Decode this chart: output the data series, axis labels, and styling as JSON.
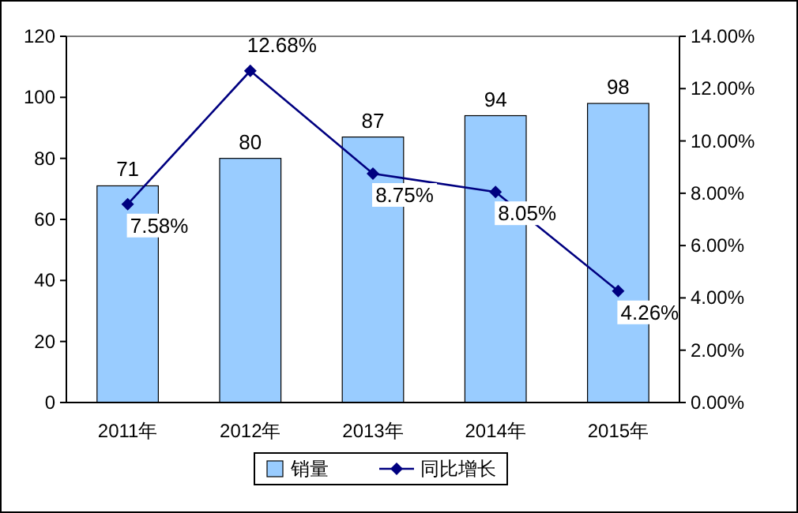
{
  "chart_data": {
    "type": "bar",
    "categories": [
      "2011年",
      "2012年",
      "2013年",
      "2014年",
      "2015年"
    ],
    "series": [
      {
        "name": "销量",
        "color": "#99ccff",
        "values": [
          71,
          80,
          87,
          94,
          98
        ],
        "value_labels": [
          "71",
          "80",
          "87",
          "94",
          "98"
        ]
      },
      {
        "name": "同比增长",
        "type": "line",
        "axis": "y2",
        "color": "#000080",
        "marker": "diamond",
        "values": [
          7.58,
          12.68,
          8.75,
          8.05,
          4.26
        ],
        "value_labels": [
          "7.58%",
          "12.68%",
          "8.75%",
          "8.05%",
          "4.26%"
        ]
      }
    ],
    "ylim": [
      0,
      120
    ],
    "yticks": [
      0,
      20,
      40,
      60,
      80,
      100,
      120
    ],
    "y2lim": [
      0,
      14
    ],
    "y2ticks": [
      {
        "value": 0,
        "label": "0.00%"
      },
      {
        "value": 2,
        "label": "2.00%"
      },
      {
        "value": 4,
        "label": "4.00%"
      },
      {
        "value": 6,
        "label": "6.00%"
      },
      {
        "value": 8,
        "label": "8.00%"
      },
      {
        "value": 10,
        "label": "10.00%"
      },
      {
        "value": 12,
        "label": "12.00%"
      },
      {
        "value": 14,
        "label": "14.00%"
      }
    ],
    "grid": false,
    "legend": "bottom"
  }
}
